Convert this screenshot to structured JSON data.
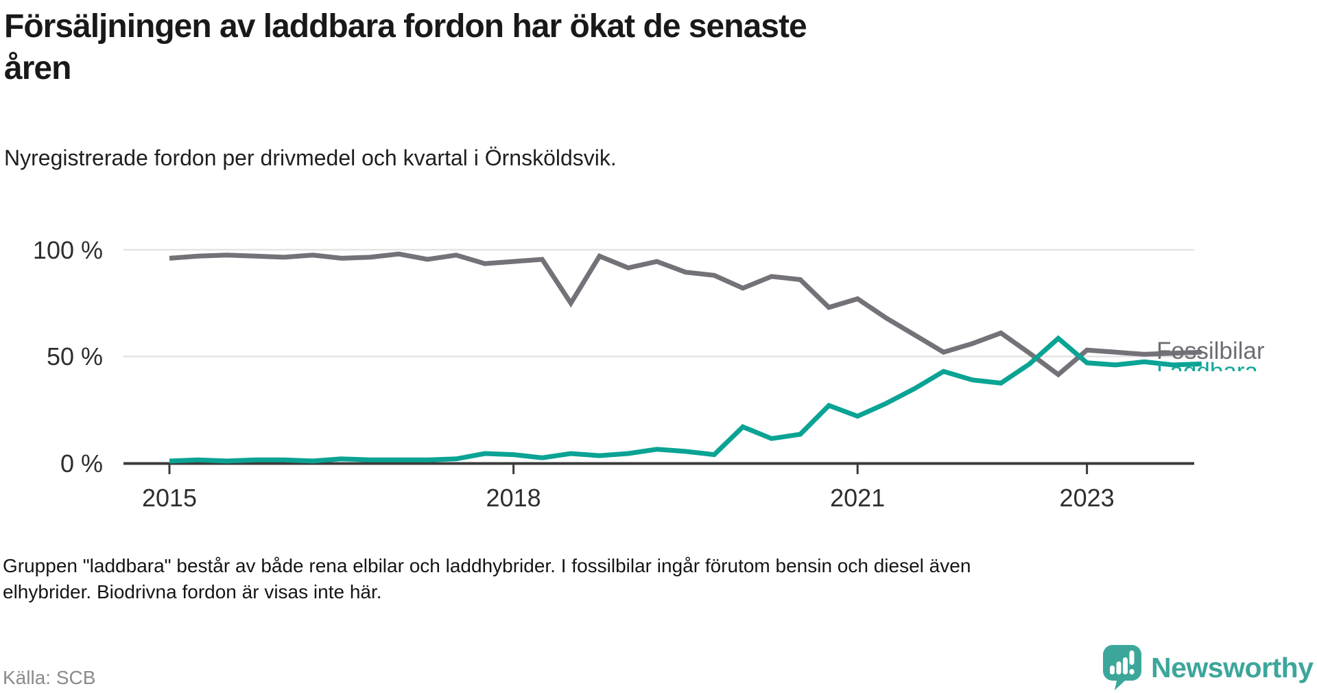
{
  "header": {
    "title_line1": "Försäljningen av laddbara fordon har ökat de senaste",
    "title_line2": "åren",
    "subtitle": "Nyregistrerade fordon per drivmedel och kvartal i Örnsköldsvik."
  },
  "chart_data": {
    "type": "line",
    "unit": "percent",
    "x": [
      "2015 Q1",
      "2015 Q2",
      "2015 Q3",
      "2015 Q4",
      "2016 Q1",
      "2016 Q2",
      "2016 Q3",
      "2016 Q4",
      "2017 Q1",
      "2017 Q2",
      "2017 Q3",
      "2017 Q4",
      "2018 Q1",
      "2018 Q2",
      "2018 Q3",
      "2018 Q4",
      "2019 Q1",
      "2019 Q2",
      "2019 Q3",
      "2019 Q4",
      "2020 Q1",
      "2020 Q2",
      "2020 Q3",
      "2020 Q4",
      "2021 Q1",
      "2021 Q2",
      "2021 Q3",
      "2021 Q4",
      "2022 Q1",
      "2022 Q2",
      "2022 Q3",
      "2022 Q4",
      "2023 Q1",
      "2023 Q2",
      "2023 Q3",
      "2023 Q4",
      "2024 Q1"
    ],
    "series": [
      {
        "name": "Fossilbilar",
        "color": "#757178",
        "label_color": "#6f6d73",
        "values": [
          96,
          97,
          97.5,
          97,
          96.5,
          97.5,
          96,
          96.5,
          98,
          95.5,
          97.5,
          93.5,
          94.5,
          95.5,
          75,
          97,
          91.5,
          94.5,
          89.5,
          88,
          82,
          87.5,
          86,
          73,
          77,
          68,
          60,
          52,
          56,
          61,
          51.5,
          41.5,
          53,
          52,
          51,
          51.5,
          52
        ]
      },
      {
        "name": "Laddbara",
        "color": "#0aa394",
        "label_color": "#12a79a",
        "values": [
          1,
          1.5,
          1,
          1.5,
          1.5,
          1,
          2,
          1.5,
          1.5,
          1.5,
          2,
          4.5,
          4,
          2.5,
          4.5,
          3.5,
          4.5,
          6.5,
          5.5,
          4,
          17,
          11.5,
          13.5,
          27,
          22,
          28,
          35,
          43,
          39,
          37.5,
          46.5,
          58.5,
          47,
          46,
          47.5,
          46,
          46.5
        ]
      }
    ],
    "y_ticks": [
      {
        "label": "100 %",
        "value": 100
      },
      {
        "label": "50 %",
        "value": 50
      },
      {
        "label": "0 %",
        "value": 0
      }
    ],
    "year_ticks": [
      {
        "label": "2015",
        "index": 0
      },
      {
        "label": "2018",
        "index": 12
      },
      {
        "label": "2021",
        "index": 24
      },
      {
        "label": "2023",
        "index": 32
      }
    ],
    "ylim": [
      0,
      100
    ],
    "grid": "horizontal only",
    "legend_position": "labels at right end of lines"
  },
  "footer": {
    "note_line1": "Gruppen \"laddbara\" består av både rena elbilar och laddhybrider. I fossilbilar ingår förutom bensin och diesel även",
    "note_line2": "elhybrider. Biodrivna fordon är visas inte här.",
    "source": "Källa: SCB"
  },
  "branding": {
    "logo_text": "Newsworthy",
    "logo_color": "#3ca69b"
  }
}
